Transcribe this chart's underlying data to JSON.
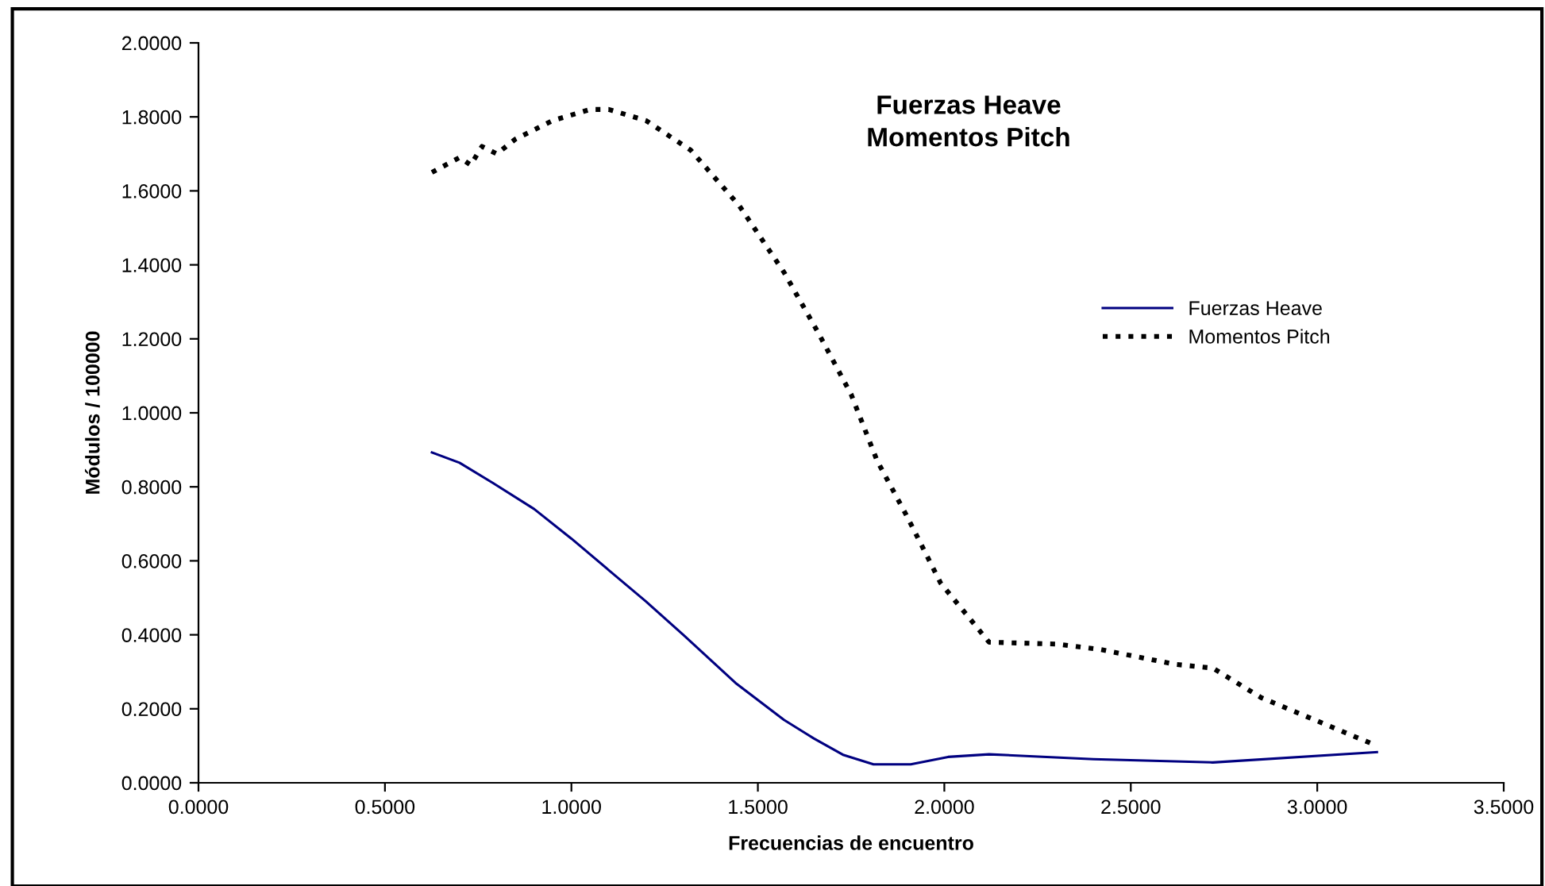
{
  "chart_data": {
    "type": "line",
    "title": "Fuerzas Heave\nMomentos Pitch",
    "xlabel": "Frecuencias de encuentro",
    "ylabel": "Módulos / 100000",
    "xlim": [
      0,
      3.5
    ],
    "ylim": [
      0,
      2
    ],
    "xticks": [
      {
        "value": 0,
        "label": "0.0000"
      },
      {
        "value": 0.5,
        "label": "0.5000"
      },
      {
        "value": 1,
        "label": "1.0000"
      },
      {
        "value": 1.5,
        "label": "1.5000"
      },
      {
        "value": 2,
        "label": "2.0000"
      },
      {
        "value": 2.5,
        "label": "2.5000"
      },
      {
        "value": 3,
        "label": "3.0000"
      },
      {
        "value": 3.5,
        "label": "3.5000"
      }
    ],
    "yticks": [
      {
        "value": 0,
        "label": "0.0000"
      },
      {
        "value": 0.2,
        "label": "0.2000"
      },
      {
        "value": 0.4,
        "label": "0.4000"
      },
      {
        "value": 0.6,
        "label": "0.6000"
      },
      {
        "value": 0.8,
        "label": "0.8000"
      },
      {
        "value": 1,
        "label": "1.0000"
      },
      {
        "value": 1.2,
        "label": "1.2000"
      },
      {
        "value": 1.4,
        "label": "1.4000"
      },
      {
        "value": 1.6,
        "label": "1.6000"
      },
      {
        "value": 1.8,
        "label": "1.8000"
      },
      {
        "value": 2,
        "label": "2.0000"
      }
    ],
    "grid": false,
    "legend": "right",
    "series": [
      {
        "name": "Fuerzas Heave",
        "color": "#000080",
        "line_style": "solid",
        "x": [
          0.626,
          0.7,
          0.79,
          0.9,
          1.0,
          1.1,
          1.2,
          1.3,
          1.44,
          1.57,
          1.65,
          1.73,
          1.81,
          1.91,
          2.01,
          2.12,
          2.4,
          2.72,
          3.16
        ],
        "values": [
          0.893,
          0.865,
          0.81,
          0.74,
          0.66,
          0.575,
          0.49,
          0.4,
          0.27,
          0.17,
          0.12,
          0.075,
          0.05,
          0.05,
          0.07,
          0.077,
          0.064,
          0.055,
          0.083
        ]
      },
      {
        "name": "Momentos Pitch",
        "color": "#000000",
        "line_style": "dotted",
        "x": [
          0.626,
          0.7,
          0.73,
          0.76,
          0.8,
          0.85,
          0.95,
          1.05,
          1.1,
          1.2,
          1.32,
          1.45,
          1.57,
          1.66,
          1.75,
          1.82,
          1.9,
          1.99,
          2.12,
          2.3,
          2.42,
          2.62,
          2.72,
          2.85,
          3.16
        ],
        "values": [
          1.65,
          1.69,
          1.67,
          1.72,
          1.7,
          1.74,
          1.79,
          1.82,
          1.82,
          1.79,
          1.71,
          1.56,
          1.38,
          1.22,
          1.05,
          0.87,
          0.72,
          0.54,
          0.38,
          0.375,
          0.36,
          0.32,
          0.31,
          0.23,
          0.1
        ]
      }
    ]
  }
}
